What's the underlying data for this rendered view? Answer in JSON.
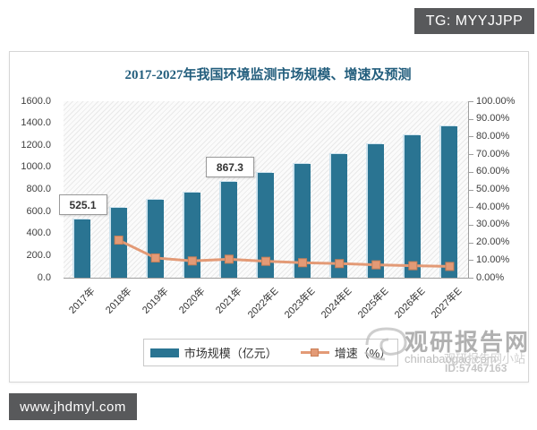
{
  "page": {
    "tg_badge": "TG: MYYJJPP",
    "site_badge": "www.jhdmyl.com"
  },
  "colors": {
    "bar": "#2a7492",
    "bar_highlight": "#cfe4ef",
    "line": "#e39a76",
    "marker_border": "#c97f57",
    "title": "#235e7d",
    "badge_bg": "#58595b"
  },
  "chart_data": {
    "type": "bar+line combo",
    "title": "2017-2027年我国环境监测市场规模、增速及预测",
    "categories": [
      "2017年",
      "2018年",
      "2019年",
      "2020年",
      "2021年",
      "2022年E",
      "2023年E",
      "2024年E",
      "2025年E",
      "2026年E",
      "2027年E"
    ],
    "series": [
      {
        "name": "市场规模（亿元）",
        "type": "bar",
        "axis": "left",
        "color": "#2a7492",
        "values": [
          525.1,
          635,
          705,
          775,
          867.3,
          950,
          1035,
          1120,
          1210,
          1290,
          1370
        ]
      },
      {
        "name": "增速（%）",
        "type": "line",
        "axis": "right",
        "color": "#e39a76",
        "values": [
          null,
          21.3,
          11.2,
          9.5,
          10.5,
          9.3,
          8.5,
          8.0,
          7.3,
          6.8,
          6.4
        ]
      }
    ],
    "data_labels": [
      {
        "index": 0,
        "text": "525.1"
      },
      {
        "index": 4,
        "text": "867.3"
      }
    ],
    "left_axis": {
      "min": 0,
      "max": 1600,
      "step": 200,
      "tick_labels": [
        "0.0",
        "200.0",
        "400.0",
        "600.0",
        "800.0",
        "1000.0",
        "1200.0",
        "1400.0",
        "1600.0"
      ]
    },
    "right_axis": {
      "min": 0,
      "max": 100,
      "step": 10,
      "tick_labels": [
        "0.00%",
        "10.00%",
        "20.00%",
        "30.00%",
        "40.00%",
        "50.00%",
        "60.00%",
        "70.00%",
        "80.00%",
        "90.00%",
        "100.00%"
      ]
    },
    "legend_position": "bottom",
    "grid": "none (hatched plot background)"
  },
  "watermark": {
    "brand": "观研报告网",
    "url": "chinabaogao.com",
    "site_label": "观研报告网小站",
    "id_label": "ID:57467163"
  }
}
